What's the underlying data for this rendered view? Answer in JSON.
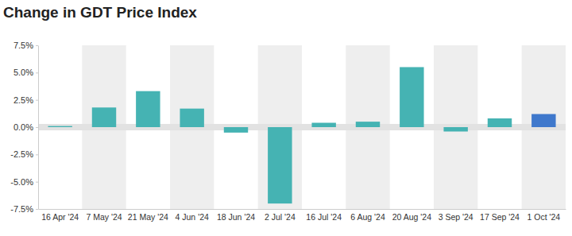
{
  "chart_data": {
    "type": "bar",
    "title": "Change in GDT Price Index",
    "categories": [
      "16 Apr '24",
      "7 May '24",
      "21 May '24",
      "4 Jun '24",
      "18 Jun '24",
      "2 Jul '24",
      "16 Jul '24",
      "6 Aug '24",
      "20 Aug '24",
      "3 Sep '24",
      "17 Sep '24",
      "1 Oct '24"
    ],
    "values": [
      0.1,
      1.8,
      3.3,
      1.7,
      -0.5,
      -7.0,
      0.4,
      0.5,
      5.5,
      -0.4,
      0.8,
      1.2
    ],
    "colors": [
      "#45b3b3",
      "#45b3b3",
      "#45b3b3",
      "#45b3b3",
      "#45b3b3",
      "#45b3b3",
      "#45b3b3",
      "#45b3b3",
      "#45b3b3",
      "#45b3b3",
      "#45b3b3",
      "#3f78cc"
    ],
    "ylim": [
      -7.5,
      7.5
    ],
    "yticks": [
      {
        "value": -7.5,
        "label": "-7.5%"
      },
      {
        "value": -5,
        "label": "-5.0%"
      },
      {
        "value": -2.5,
        "label": "-2.5%"
      },
      {
        "value": 0,
        "label": "0.0%"
      },
      {
        "value": 2.5,
        "label": "2.5%"
      },
      {
        "value": 5,
        "label": "5.0%"
      },
      {
        "value": 7.5,
        "label": "7.5%"
      }
    ],
    "grid": false
  }
}
